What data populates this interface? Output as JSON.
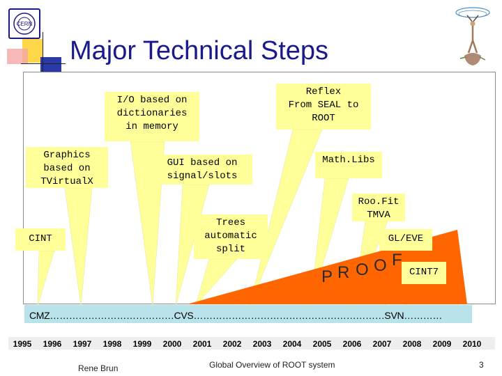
{
  "slide": {
    "title": "Major Technical Steps",
    "footer_author": "Rene Brun",
    "footer_center": "Global Overview of ROOT system",
    "page_number": "3",
    "logo_left": "CERN",
    "colors": {
      "title": "#1a1a8c",
      "callout": "#ffff99",
      "wedge": "#ff6600",
      "band": "#b9e3ea",
      "accent_yellow": "#ffd54a",
      "accent_blue": "#2a3aa8"
    }
  },
  "callouts": [
    {
      "id": "io",
      "label": "I/O based on\ndictionaries\nin memory"
    },
    {
      "id": "reflex",
      "label": "Reflex\nFrom SEAL to\nROOT"
    },
    {
      "id": "graphics",
      "label": "Graphics\nbased on\nTVirtualX"
    },
    {
      "id": "gui",
      "label": "GUI based on\nsignal/slots"
    },
    {
      "id": "mathlibs",
      "label": "Math.Libs"
    },
    {
      "id": "roofit",
      "label": "Roo.Fit\nTMVA"
    },
    {
      "id": "trees",
      "label": "Trees\nautomatic\nsplit"
    },
    {
      "id": "cint",
      "label": "CINT"
    },
    {
      "id": "gleve",
      "label": "GL/EVE"
    },
    {
      "id": "cint7",
      "label": "CINT7"
    }
  ],
  "proof_letters": [
    "P",
    "R",
    "O",
    "O",
    "F"
  ],
  "timeline_text": "CMZ…………………………………CVS……………………………………………………SVN…………",
  "years": [
    "1995",
    "1996",
    "1997",
    "1998",
    "1999",
    "2000",
    "2001",
    "2002",
    "2003",
    "2004",
    "2005",
    "2006",
    "2007",
    "2008",
    "2009",
    "2010"
  ]
}
